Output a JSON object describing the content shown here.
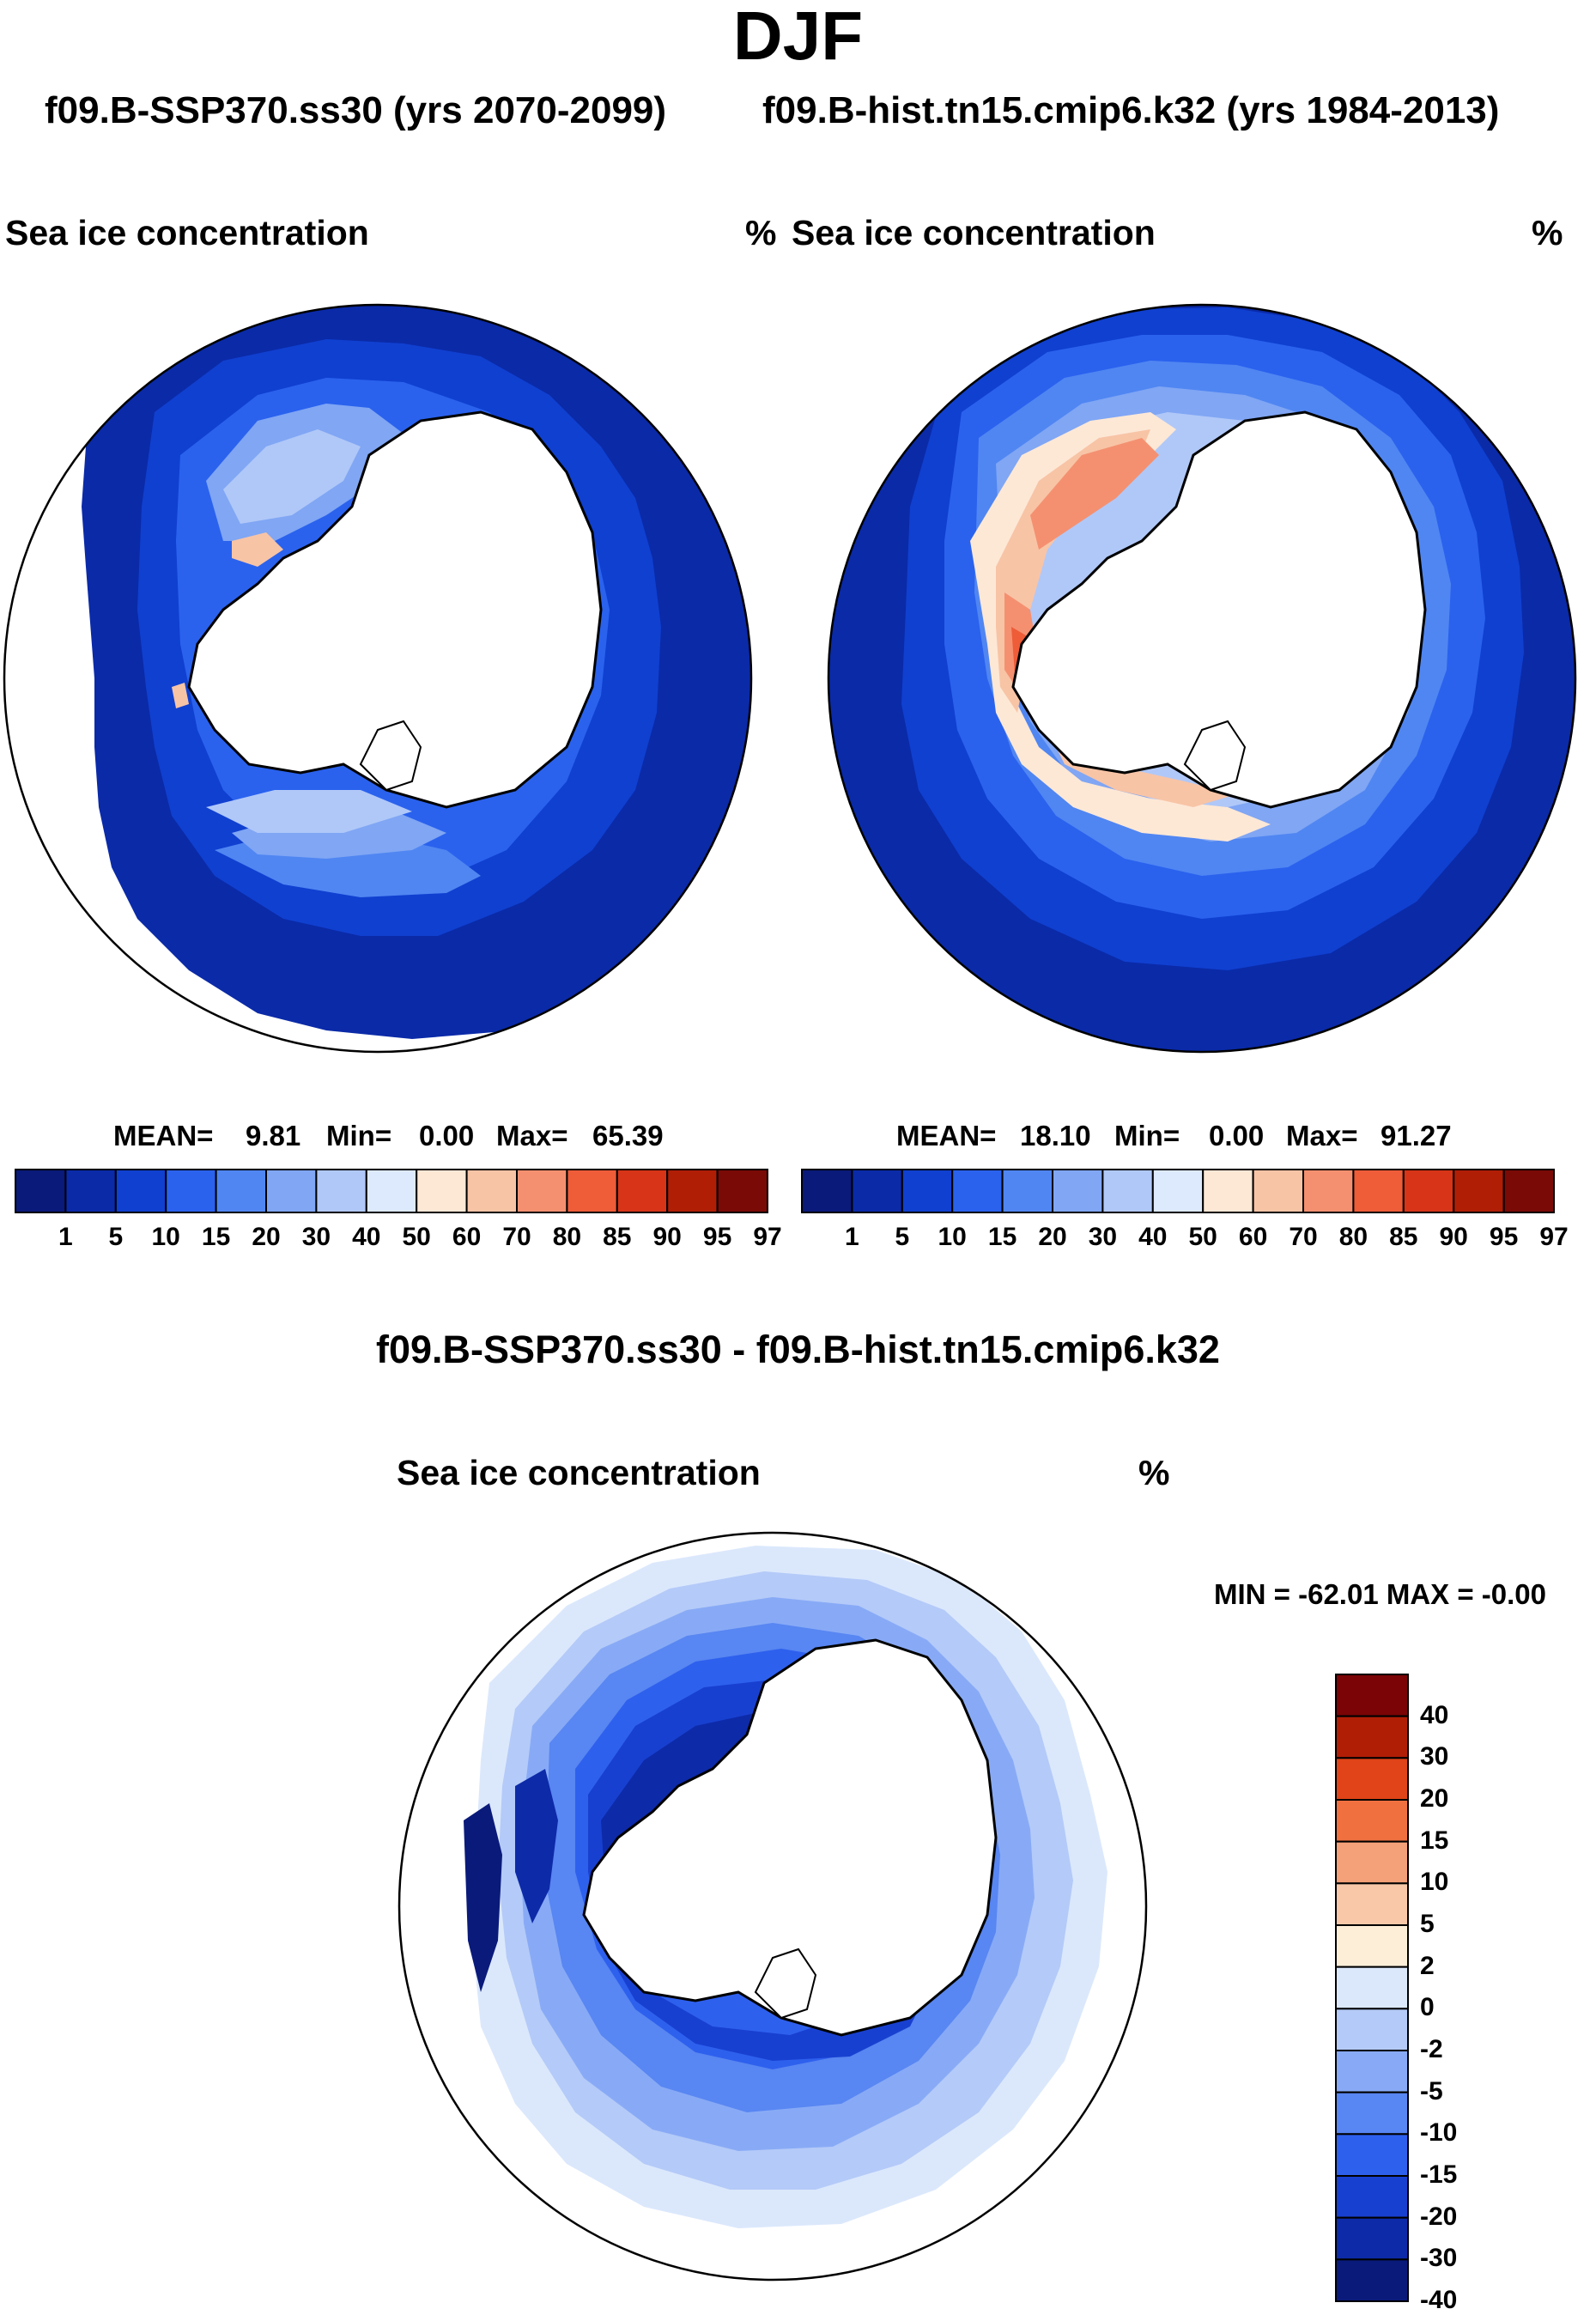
{
  "figure": {
    "title": "DJF",
    "subtitle_left": "f09.B-SSP370.ss30 (yrs 2070-2099)",
    "subtitle_right": "f09.B-hist.tn15.cmip6.k32 (yrs 1984-2013)"
  },
  "colors": {
    "land": "#ffffff",
    "coast": "#000000",
    "abs_scale": [
      "#0a1a7a",
      "#0a2aa8",
      "#1040d0",
      "#2a62ee",
      "#5086f2",
      "#80a6f4",
      "#b0c8f8",
      "#dde9fc",
      "#fde8d6",
      "#f8c4a6",
      "#f49070",
      "#ee5c38",
      "#d83418",
      "#b01e06",
      "#7a0a06"
    ],
    "diff_scale": [
      "#0a1a7a",
      "#0d2aa8",
      "#1840d0",
      "#2e60ee",
      "#5886f2",
      "#88aaf6",
      "#b4caf8",
      "#dbe8fc",
      "#fdeed8",
      "#f8c8a8",
      "#f4a078",
      "#f07040",
      "#e04418",
      "#b01e06",
      "#7a0406"
    ]
  },
  "panels": {
    "ssp370": {
      "title": "Sea ice concentration",
      "units": "%",
      "mean_label": "MEAN=",
      "mean": "9.81",
      "min_label": "Min=",
      "min": "0.00",
      "max_label": "Max=",
      "max": "65.39",
      "colorbar_labels": [
        "1",
        "5",
        "10",
        "15",
        "20",
        "30",
        "40",
        "50",
        "60",
        "70",
        "80",
        "85",
        "90",
        "95",
        "97"
      ]
    },
    "hist": {
      "title": "Sea ice concentration",
      "units": "%",
      "mean_label": "MEAN=",
      "mean": "18.10",
      "min_label": "Min=",
      "min": "0.00",
      "max_label": "Max=",
      "max": "91.27",
      "colorbar_labels": [
        "1",
        "5",
        "10",
        "15",
        "20",
        "30",
        "40",
        "50",
        "60",
        "70",
        "80",
        "85",
        "90",
        "95",
        "97"
      ]
    },
    "diff": {
      "case_title": "f09.B-SSP370.ss30 - f09.B-hist.tn15.cmip6.k32",
      "title": "Sea ice concentration",
      "units": "%",
      "minmax_text": "MIN = -62.01 MAX =  -0.00",
      "colorbar_labels": [
        "40",
        "30",
        "20",
        "15",
        "10",
        "5",
        "2",
        "0",
        "-2",
        "-5",
        "-10",
        "-15",
        "-20",
        "-30",
        "-40"
      ]
    }
  }
}
